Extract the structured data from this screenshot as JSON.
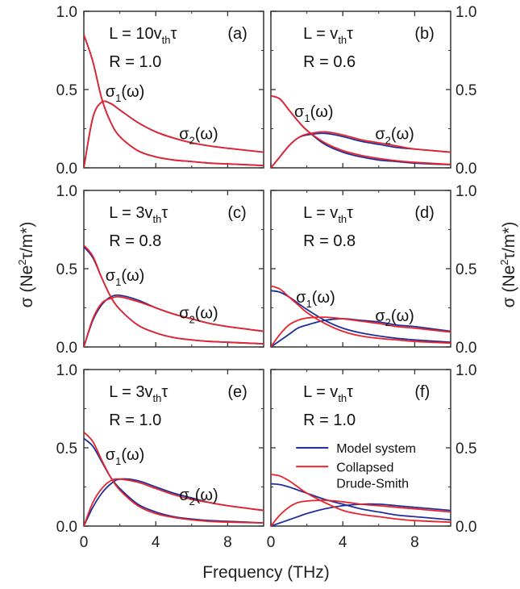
{
  "figure": {
    "xlabel": "Frequency (THz)",
    "ylabel_left": {
      "main": "σ (Ne",
      "sup": "2",
      "rest": "τ/m*)"
    },
    "ylabel_right": {
      "main": "σ (Ne",
      "sup": "2",
      "rest": "τ/m*)"
    },
    "x_ticks": [
      "0",
      "4",
      "8"
    ],
    "y_ticks": [
      "0.0",
      "0.5",
      "1.0"
    ],
    "legend": {
      "model": "Model system",
      "collapsed_line1": "Collapsed",
      "collapsed_line2": "Drude-Smith"
    },
    "colors": {
      "model": "#1f2f9a",
      "collapsed": "#e8232a"
    }
  },
  "chart_data": [
    {
      "type": "line",
      "panel": "(a)",
      "L": {
        "pre": "L = 10v",
        "sub": "th",
        "post": "τ"
      },
      "R": "R = 1.0",
      "sigma1_label": {
        "main": "σ",
        "sub": "1",
        "post": "(ω)"
      },
      "sigma2_label": {
        "main": "σ",
        "sub": "2",
        "post": "(ω)"
      },
      "xlim": [
        0,
        10
      ],
      "ylim": [
        0,
        1
      ],
      "x": [
        0,
        0.5,
        1,
        1.5,
        2,
        3,
        4,
        5,
        6,
        7,
        8,
        10
      ],
      "series": [
        {
          "name": "Model system",
          "part": "σ1",
          "values": [
            0.85,
            0.68,
            0.44,
            0.29,
            0.2,
            0.11,
            0.07,
            0.05,
            0.04,
            0.03,
            0.025,
            0.015
          ]
        },
        {
          "name": "Model system",
          "part": "σ2",
          "values": [
            0,
            0.32,
            0.42,
            0.41,
            0.37,
            0.29,
            0.23,
            0.19,
            0.16,
            0.14,
            0.125,
            0.1
          ]
        },
        {
          "name": "Collapsed Drude-Smith",
          "part": "σ1",
          "values": [
            0.85,
            0.68,
            0.44,
            0.29,
            0.2,
            0.11,
            0.07,
            0.05,
            0.04,
            0.03,
            0.025,
            0.015
          ]
        },
        {
          "name": "Collapsed Drude-Smith",
          "part": "σ2",
          "values": [
            0,
            0.32,
            0.42,
            0.41,
            0.37,
            0.29,
            0.23,
            0.19,
            0.16,
            0.14,
            0.125,
            0.1
          ]
        }
      ]
    },
    {
      "type": "line",
      "panel": "(b)",
      "L": {
        "pre": "L = v",
        "sub": "th",
        "post": "τ"
      },
      "R": "R = 0.6",
      "sigma1_label": {
        "main": "σ",
        "sub": "1",
        "post": "(ω)"
      },
      "sigma2_label": {
        "main": "σ",
        "sub": "2",
        "post": "(ω)"
      },
      "xlim": [
        0,
        10
      ],
      "ylim": [
        0,
        1
      ],
      "x": [
        0,
        0.5,
        1,
        1.5,
        2,
        3,
        4,
        5,
        6,
        7,
        8,
        10
      ],
      "series": [
        {
          "name": "Model system",
          "part": "σ1",
          "values": [
            0.46,
            0.44,
            0.37,
            0.3,
            0.24,
            0.15,
            0.1,
            0.07,
            0.05,
            0.04,
            0.03,
            0.02
          ]
        },
        {
          "name": "Model system",
          "part": "σ2",
          "values": [
            0,
            0.07,
            0.14,
            0.19,
            0.21,
            0.22,
            0.2,
            0.17,
            0.15,
            0.13,
            0.12,
            0.1
          ]
        },
        {
          "name": "Collapsed Drude-Smith",
          "part": "σ1",
          "values": [
            0.46,
            0.44,
            0.37,
            0.3,
            0.24,
            0.16,
            0.11,
            0.08,
            0.06,
            0.045,
            0.035,
            0.022
          ]
        },
        {
          "name": "Collapsed Drude-Smith",
          "part": "σ2",
          "values": [
            0,
            0.07,
            0.14,
            0.19,
            0.215,
            0.23,
            0.21,
            0.18,
            0.16,
            0.14,
            0.12,
            0.1
          ]
        }
      ]
    },
    {
      "type": "line",
      "panel": "(c)",
      "L": {
        "pre": "L = 3v",
        "sub": "th",
        "post": "τ"
      },
      "R": "R = 0.8",
      "sigma1_label": {
        "main": "σ",
        "sub": "1",
        "post": "(ω)"
      },
      "sigma2_label": {
        "main": "σ",
        "sub": "2",
        "post": "(ω)"
      },
      "xlim": [
        0,
        10
      ],
      "ylim": [
        0,
        1
      ],
      "x": [
        0,
        0.5,
        1,
        1.5,
        2,
        3,
        4,
        5,
        6,
        7,
        8,
        10
      ],
      "series": [
        {
          "name": "Model system",
          "part": "σ1",
          "values": [
            0.64,
            0.57,
            0.44,
            0.32,
            0.24,
            0.14,
            0.09,
            0.06,
            0.045,
            0.035,
            0.03,
            0.02
          ]
        },
        {
          "name": "Model system",
          "part": "σ2",
          "values": [
            0,
            0.17,
            0.27,
            0.32,
            0.33,
            0.3,
            0.25,
            0.21,
            0.18,
            0.15,
            0.13,
            0.1
          ]
        },
        {
          "name": "Collapsed Drude-Smith",
          "part": "σ1",
          "values": [
            0.65,
            0.58,
            0.44,
            0.32,
            0.24,
            0.14,
            0.09,
            0.06,
            0.045,
            0.035,
            0.03,
            0.02
          ]
        },
        {
          "name": "Collapsed Drude-Smith",
          "part": "σ2",
          "values": [
            0,
            0.18,
            0.28,
            0.31,
            0.32,
            0.29,
            0.25,
            0.21,
            0.18,
            0.15,
            0.13,
            0.1
          ]
        }
      ]
    },
    {
      "type": "line",
      "panel": "(d)",
      "L": {
        "pre": "L = v",
        "sub": "th",
        "post": "τ"
      },
      "R": "R = 0.8",
      "sigma1_label": {
        "main": "σ",
        "sub": "1",
        "post": "(ω)"
      },
      "sigma2_label": {
        "main": "σ",
        "sub": "2",
        "post": "(ω)"
      },
      "xlim": [
        0,
        10
      ],
      "ylim": [
        0,
        1
      ],
      "x": [
        0,
        0.5,
        1,
        1.5,
        2,
        3,
        4,
        5,
        6,
        7,
        8,
        10
      ],
      "series": [
        {
          "name": "Model system",
          "part": "σ1",
          "values": [
            0.36,
            0.35,
            0.32,
            0.28,
            0.24,
            0.17,
            0.12,
            0.09,
            0.07,
            0.055,
            0.045,
            0.03
          ]
        },
        {
          "name": "Model system",
          "part": "σ2",
          "values": [
            0,
            0.04,
            0.08,
            0.12,
            0.14,
            0.17,
            0.18,
            0.17,
            0.16,
            0.14,
            0.13,
            0.1
          ]
        },
        {
          "name": "Collapsed Drude-Smith",
          "part": "σ1",
          "values": [
            0.39,
            0.37,
            0.32,
            0.27,
            0.22,
            0.15,
            0.1,
            0.07,
            0.055,
            0.045,
            0.035,
            0.025
          ]
        },
        {
          "name": "Collapsed Drude-Smith",
          "part": "σ2",
          "values": [
            0,
            0.08,
            0.14,
            0.17,
            0.185,
            0.19,
            0.18,
            0.165,
            0.15,
            0.13,
            0.12,
            0.095
          ]
        }
      ]
    },
    {
      "type": "line",
      "panel": "(e)",
      "L": {
        "pre": "L = 3v",
        "sub": "th",
        "post": "τ"
      },
      "R": "R = 1.0",
      "sigma1_label": {
        "main": "σ",
        "sub": "1",
        "post": "(ω)"
      },
      "sigma2_label": {
        "main": "σ",
        "sub": "2",
        "post": "(ω)"
      },
      "xlim": [
        0,
        10
      ],
      "ylim": [
        0,
        1
      ],
      "x": [
        0,
        0.5,
        1,
        1.5,
        2,
        3,
        4,
        5,
        6,
        7,
        8,
        10
      ],
      "series": [
        {
          "name": "Model system",
          "part": "σ1",
          "values": [
            0.56,
            0.51,
            0.41,
            0.31,
            0.24,
            0.14,
            0.09,
            0.06,
            0.045,
            0.035,
            0.03,
            0.02
          ]
        },
        {
          "name": "Model system",
          "part": "σ2",
          "values": [
            0,
            0.12,
            0.21,
            0.27,
            0.3,
            0.29,
            0.25,
            0.21,
            0.18,
            0.15,
            0.13,
            0.1
          ]
        },
        {
          "name": "Collapsed Drude-Smith",
          "part": "σ1",
          "values": [
            0.6,
            0.54,
            0.42,
            0.31,
            0.23,
            0.13,
            0.08,
            0.055,
            0.04,
            0.03,
            0.025,
            0.02
          ]
        },
        {
          "name": "Collapsed Drude-Smith",
          "part": "σ2",
          "values": [
            0,
            0.15,
            0.24,
            0.29,
            0.3,
            0.28,
            0.24,
            0.2,
            0.17,
            0.15,
            0.13,
            0.1
          ]
        }
      ]
    },
    {
      "type": "line",
      "panel": "(f)",
      "L": {
        "pre": "L = v",
        "sub": "th",
        "post": "τ"
      },
      "R": "R = 1.0",
      "xlim": [
        0,
        10
      ],
      "ylim": [
        0,
        1
      ],
      "x": [
        0,
        0.5,
        1,
        1.5,
        2,
        3,
        4,
        5,
        6,
        7,
        8,
        10
      ],
      "series": [
        {
          "name": "Model system",
          "part": "σ1",
          "values": [
            0.27,
            0.265,
            0.25,
            0.23,
            0.21,
            0.17,
            0.14,
            0.11,
            0.09,
            0.07,
            0.06,
            0.04
          ]
        },
        {
          "name": "Model system",
          "part": "σ2",
          "values": [
            0,
            0.02,
            0.04,
            0.06,
            0.08,
            0.11,
            0.13,
            0.14,
            0.14,
            0.13,
            0.12,
            0.1
          ]
        },
        {
          "name": "Collapsed Drude-Smith",
          "part": "σ1",
          "values": [
            0.33,
            0.32,
            0.29,
            0.25,
            0.21,
            0.15,
            0.1,
            0.075,
            0.06,
            0.045,
            0.035,
            0.025
          ]
        },
        {
          "name": "Collapsed Drude-Smith",
          "part": "σ2",
          "values": [
            0,
            0.07,
            0.12,
            0.15,
            0.16,
            0.165,
            0.155,
            0.14,
            0.13,
            0.12,
            0.11,
            0.09
          ]
        }
      ]
    }
  ]
}
